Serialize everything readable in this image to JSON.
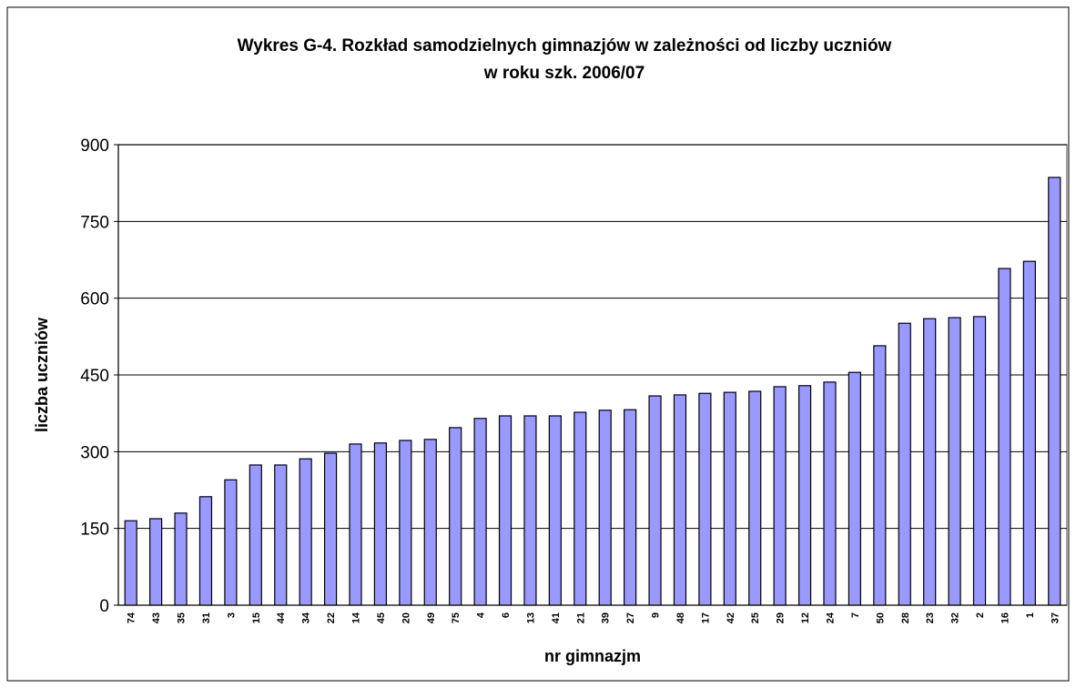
{
  "chart_data": {
    "type": "bar",
    "title": "Wykres G-4. Rozkład samodzielnych gimnazjów w zależności od liczby uczniów",
    "subtitle": "w roku szk. 2006/07",
    "x_label": "nr gimnazjm",
    "y_label": "liczba uczniów",
    "categories": [
      "74",
      "43",
      "35",
      "31",
      "3",
      "15",
      "44",
      "34",
      "22",
      "14",
      "45",
      "20",
      "49",
      "75",
      "4",
      "6",
      "13",
      "41",
      "21",
      "39",
      "27",
      "9",
      "48",
      "17",
      "42",
      "25",
      "29",
      "12",
      "24",
      "7",
      "50",
      "28",
      "23",
      "32",
      "2",
      "16",
      "1",
      "37"
    ],
    "values": [
      165,
      169,
      180,
      212,
      245,
      274,
      274,
      286,
      297,
      315,
      317,
      322,
      324,
      347,
      365,
      370,
      370,
      370,
      377,
      381,
      382,
      409,
      411,
      414,
      416,
      418,
      427,
      429,
      436,
      455,
      507,
      551,
      560,
      562,
      564,
      658,
      672,
      836
    ],
    "color": "#9999ff",
    "ylim": [
      0,
      900
    ],
    "yticks": [
      0,
      150,
      300,
      450,
      600,
      750,
      900
    ],
    "grid": true
  }
}
